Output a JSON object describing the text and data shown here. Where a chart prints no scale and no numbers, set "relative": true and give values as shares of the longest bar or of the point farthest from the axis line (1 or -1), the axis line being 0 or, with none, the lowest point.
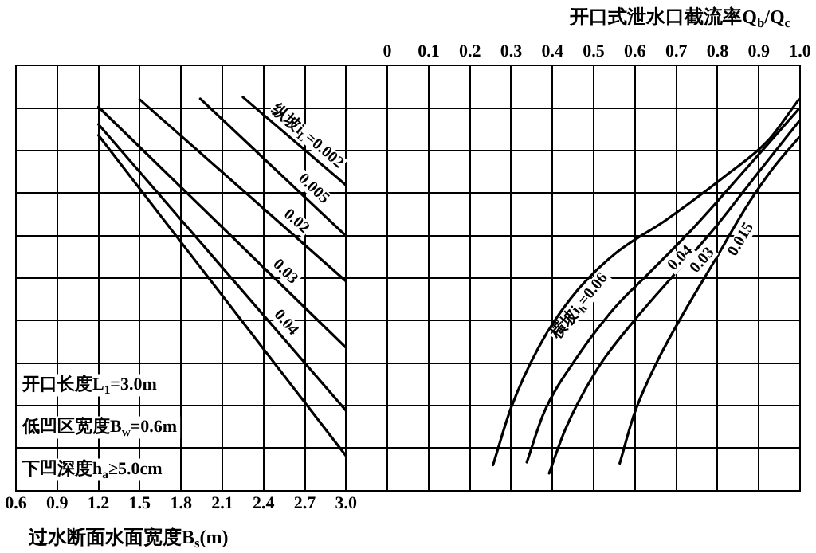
{
  "chart_data": {
    "type": "line",
    "relative": true,
    "xlabel": "过水断面水面宽度B$_{s}$(m)",
    "x2label": "开口式泄水口截流率Q$_{b}$/Q$_{c}$",
    "xlim": [
      0.6,
      6.3
    ],
    "xticks": [
      0.6,
      0.9,
      1.2,
      1.5,
      1.8,
      2.1,
      2.4,
      2.7,
      {
        "value": 3,
        "label": "3.0"
      },
      {
        "value": 3.3,
        "label": null
      },
      {
        "value": 3.6,
        "label": null
      },
      {
        "value": 3.9,
        "label": null
      },
      {
        "value": 4.2,
        "label": null
      },
      {
        "value": 4.5,
        "label": null
      },
      {
        "value": 4.8,
        "label": null
      },
      {
        "value": 5.1,
        "label": null
      },
      {
        "value": 5.4,
        "label": null
      },
      {
        "value": 5.7,
        "label": null
      },
      {
        "value": 6.0,
        "label": null
      },
      {
        "value": 6.3,
        "label": null
      }
    ],
    "x2lim": [
      -0.9,
      1.0
    ],
    "x2ticks": [
      0,
      0.1,
      0.2,
      0.3,
      0.4,
      0.5,
      0.6,
      0.7,
      0.8,
      0.9,
      {
        "value": 1,
        "label": "1.0"
      }
    ],
    "grid": true,
    "legend": false,
    "marker": "none",
    "line_style": "solid",
    "series": [
      {
        "name": "纵坡i$_{L}$=0.002",
        "color": "#000000",
        "x": [
          2.25,
          3.0
        ],
        "values": [
          1,
          0.776
        ]
      },
      {
        "name": "0.005",
        "color": "#000000",
        "x": [
          1.94,
          3.0
        ],
        "values": [
          0.996,
          0.647
        ]
      },
      {
        "name": "0.02",
        "color": "#000000",
        "x": [
          1.5,
          3.0
        ],
        "values": [
          0.994,
          0.532
        ]
      },
      {
        "name": "0.03",
        "color": "#000000",
        "x": [
          1.2,
          3.0
        ],
        "values": [
          0.975,
          0.363
        ]
      },
      {
        "name": "0.04",
        "color": "#000000",
        "x": [
          1.2,
          3.0
        ],
        "values": [
          0.931,
          0.203
        ]
      },
      {
        "color": "#000000",
        "x": [
          1.2,
          3.0
        ],
        "values": [
          0.903,
          0.088
        ]
      },
      {
        "name": "横坡i$_{h}$=0.06",
        "color": "#000000",
        "axis": "x2",
        "x": [
          0.256,
          0.3,
          0.366,
          0.444,
          0.547,
          0.677,
          0.819,
          0.922,
          0.997
        ],
        "values": [
          0.065,
          0.211,
          0.363,
          0.488,
          0.598,
          0.689,
          0.8,
          0.889,
          0.994
        ]
      },
      {
        "name": "0.04",
        "color": "#000000",
        "axis": "x2",
        "x": [
          0.338,
          0.379,
          0.457,
          0.547,
          0.638,
          0.741,
          0.871,
          0.997
        ],
        "values": [
          0.072,
          0.197,
          0.335,
          0.46,
          0.557,
          0.667,
          0.82,
          0.97
        ]
      },
      {
        "name": "0.03",
        "color": "#000000",
        "axis": "x2",
        "x": [
          0.392,
          0.431,
          0.508,
          0.599,
          0.69,
          0.793,
          0.897,
          0.997
        ],
        "values": [
          0.044,
          0.155,
          0.308,
          0.433,
          0.543,
          0.667,
          0.806,
          0.938
        ]
      },
      {
        "name": "0.015",
        "color": "#000000",
        "axis": "x2",
        "x": [
          0.563,
          0.599,
          0.651,
          0.715,
          0.793,
          0.871,
          0.935,
          0.997
        ],
        "values": [
          0.069,
          0.197,
          0.322,
          0.446,
          0.584,
          0.723,
          0.82,
          0.897
        ]
      }
    ],
    "annotations": [
      "开口长度L$_{1}$=3.0m",
      "低凹区宽度B$_{w}$=0.6m",
      "下凹深度h$_{a}$≥5.0cm"
    ]
  }
}
